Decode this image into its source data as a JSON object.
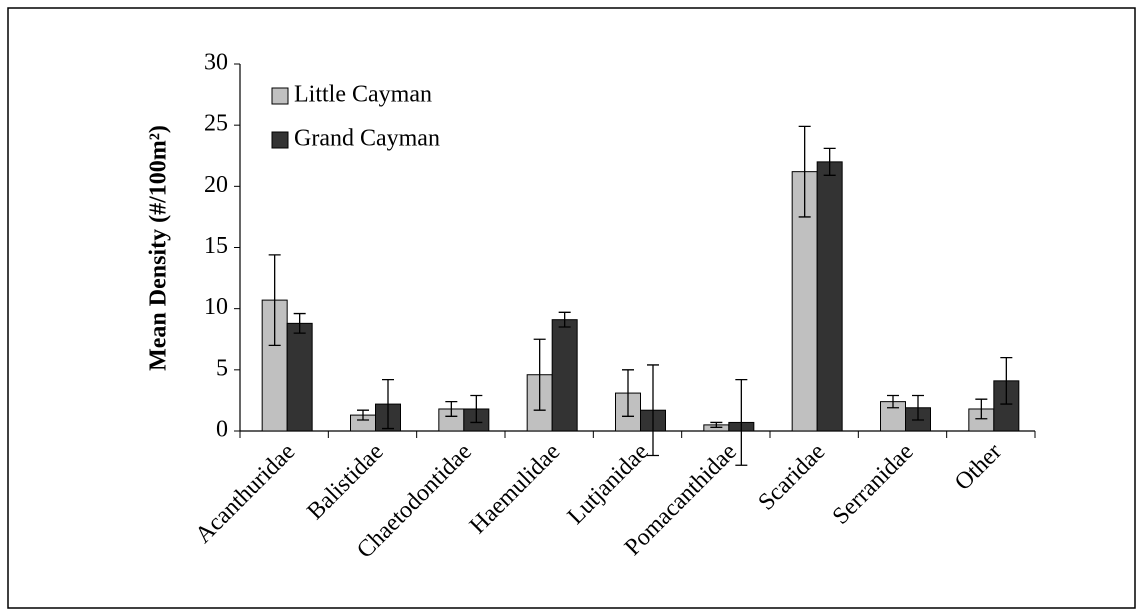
{
  "chart_data": {
    "type": "bar",
    "ylabel": "Mean Density (#/100m²)",
    "categories": [
      "Acanthuridae",
      "Balistidae",
      "Chaetodontidae",
      "Haemulidae",
      "Lutjanidae",
      "Pomacanthidae",
      "Scaridae",
      "Serranidae",
      "Other"
    ],
    "series": [
      {
        "name": "Little Cayman",
        "color": "#c0c0c0",
        "values": [
          10.7,
          1.3,
          1.8,
          4.6,
          3.1,
          0.5,
          21.2,
          2.4,
          1.8
        ],
        "errors": [
          3.7,
          0.4,
          0.6,
          2.9,
          1.9,
          0.2,
          3.7,
          0.5,
          0.8
        ]
      },
      {
        "name": "Grand Cayman",
        "color": "#333333",
        "values": [
          8.8,
          2.2,
          1.8,
          9.1,
          1.7,
          0.7,
          22.0,
          1.9,
          4.1
        ],
        "errors": [
          0.8,
          2.0,
          1.1,
          0.6,
          3.7,
          3.5,
          1.1,
          1.0,
          1.9
        ]
      }
    ],
    "ylim": [
      0,
      30
    ],
    "yticks": [
      0,
      5,
      10,
      15,
      20,
      25,
      30
    ],
    "grid": false,
    "legend": "top-left"
  }
}
